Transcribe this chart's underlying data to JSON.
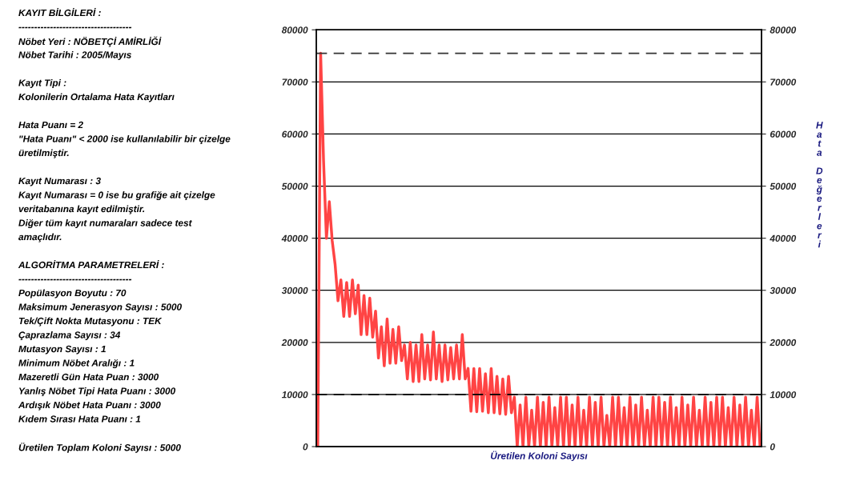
{
  "chart_data": {
    "type": "line",
    "xlabel": "Üretilen Koloni Sayısı",
    "y2label": "Hata Değerleri",
    "annotations": [
      "KAYIT BİLGİLERİ :\n------------------------------------\nNöbet Yeri : NÖBETÇİ AMİRLİĞİ\nNöbet Tarihi : 2005/Mayıs",
      "Kayıt Tipi :\nKolonilerin Ortalama Hata Kayıtları",
      "Hata Puanı = 2\n\"Hata Puanı\" < 2000 ise kullanılabilir bir çizelge\nüretilmiştir.",
      "Kayıt Numarası : 3\nKayıt Numarası = 0 ise bu grafiğe ait çizelge\nveritabanına kayıt edilmiştir.\nDiğer tüm kayıt numaraları sadece test\namaçlıdır.",
      "ALGORİTMA PARAMETRELERİ :\n------------------------------------\nPopülasyon Boyutu : 70\nMaksimum Jenerasyon Sayısı : 5000\nTek/Çift Nokta Mutasyonu : TEK\nÇaprazlama Sayısı : 34\nMutasyon Sayısı : 1\nMinimum Nöbet Aralığı : 1\nMazeretli Gün Hata Puan : 3000\nYanlış Nöbet Tipi Hata Puanı : 3000\nArdışık Nöbet Hata Puanı : 3000\nKıdem Sırası Hata Puanı : 1",
      "Üretilen Toplam Koloni Sayısı : 5000"
    ],
    "categories": [
      null,
      null,
      null,
      null,
      null,
      null,
      null,
      null,
      null,
      null,
      null,
      null,
      null,
      null,
      null,
      null,
      null,
      null,
      null,
      null,
      null,
      null,
      null,
      null,
      null,
      null,
      null,
      null,
      null,
      null,
      null,
      null,
      null,
      null,
      null,
      null,
      null,
      null,
      null,
      null,
      null,
      null,
      null,
      null,
      null,
      null,
      null,
      null,
      null,
      null,
      null,
      null,
      null,
      null,
      null,
      null,
      null,
      null,
      null,
      null,
      null,
      null,
      null,
      null,
      null,
      null,
      null,
      null,
      null,
      null,
      null,
      null,
      null,
      null,
      null,
      null,
      null,
      null,
      null,
      null,
      null,
      null,
      null,
      null,
      null,
      null,
      null,
      null,
      null,
      null,
      null,
      null,
      null,
      null,
      null,
      null,
      null,
      null,
      null,
      null,
      null,
      null,
      null,
      null,
      null,
      null,
      null,
      null,
      null,
      null,
      null,
      null,
      null,
      null,
      null,
      null,
      null,
      null,
      null,
      null,
      null,
      null,
      null,
      null,
      null,
      null,
      null,
      null,
      null,
      null,
      null,
      null,
      null,
      null,
      null,
      null,
      null,
      null,
      null,
      null,
      null,
      null,
      null,
      null,
      null,
      null,
      null,
      null,
      null,
      null,
      null,
      null,
      null,
      null
    ],
    "series": [
      {
        "color": "#ff4444",
        "values": [
          0,
          75500,
          55000,
          40000,
          47000,
          39500,
          35000,
          28000,
          32000,
          25000,
          31500,
          25000,
          32000,
          25500,
          31000,
          21500,
          29000,
          21500,
          28500,
          21000,
          26000,
          17000,
          23000,
          15500,
          24500,
          16000,
          22500,
          16000,
          23000,
          16500,
          19500,
          13000,
          20000,
          12500,
          19500,
          12500,
          21500,
          13000,
          19500,
          12800,
          22000,
          13000,
          19500,
          12500,
          19500,
          12800,
          19000,
          13000,
          19500,
          13000,
          21500,
          13000,
          15000,
          6800,
          15000,
          6700,
          15000,
          6800,
          14000,
          6500,
          15000,
          6500,
          13500,
          6300,
          13000,
          6200,
          13500,
          6500,
          9500,
          0,
          8000,
          0,
          9500,
          0,
          7000,
          0,
          9500,
          0,
          8500,
          0,
          9500,
          0,
          7500,
          0,
          9500,
          0,
          9500,
          0,
          8000,
          0,
          9500,
          0,
          7000,
          0,
          9500,
          0,
          8500,
          0,
          9500,
          0,
          6000,
          0,
          9500,
          0,
          9500,
          0,
          7500,
          0,
          9500,
          0,
          8000,
          0,
          9500,
          0,
          7000,
          0,
          9500,
          0,
          9500,
          0,
          8500,
          0,
          9500,
          0,
          7500,
          0,
          9500,
          0,
          8000,
          0,
          9500,
          0,
          7000,
          0,
          9500,
          0,
          8500,
          0,
          9500,
          0,
          9500,
          0,
          7500,
          0,
          9500,
          0,
          8000,
          0,
          9500,
          0,
          7000,
          0,
          9500,
          0
        ]
      }
    ],
    "ylim": [
      0,
      80000
    ],
    "yticks": [
      0,
      10000,
      20000,
      30000,
      40000,
      50000,
      60000,
      70000,
      80000
    ],
    "y2lim": [
      0,
      80000
    ],
    "y2ticks": [
      0,
      10000,
      20000,
      30000,
      40000,
      50000,
      60000,
      70000,
      80000
    ],
    "ref_lines": [
      {
        "axis": "y",
        "value": 75500,
        "color": "#333333",
        "line_style": "dashed"
      },
      {
        "axis": "y",
        "value": 10000,
        "color": "#000000",
        "line_style": "dashed"
      }
    ],
    "grid": "y",
    "tick_labels": "y"
  }
}
